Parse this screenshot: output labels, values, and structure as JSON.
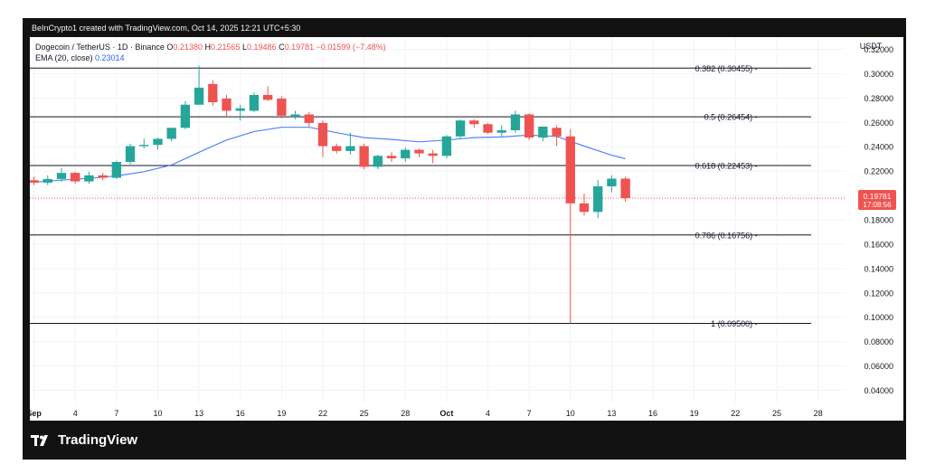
{
  "header": {
    "attribution": "BeInCrypto1 created with TradingView.com, Oct 14, 2025 12:21 UTC+5:30"
  },
  "legend": {
    "symbol": "Dogecoin / TetherUS · 1D · Binance",
    "o_label": "O",
    "o_value": "0.21380",
    "h_label": "H",
    "h_value": "0.21565",
    "l_label": "L",
    "l_value": "0.19486",
    "c_label": "C",
    "c_value": "0.19781",
    "change": "−0.01599 (−7.48%)",
    "ema_label": "EMA (20, close)",
    "ema_value": "0.23014"
  },
  "axis": {
    "currency": "USDT",
    "price_label": "0.19781",
    "countdown": "17:08:56"
  },
  "footer": {
    "brand": "TradingView"
  },
  "colors": {
    "up": "#26a69a",
    "down": "#ef5350",
    "ema": "#2962ff",
    "level_line": "#131722",
    "text": "#131722"
  },
  "chart_data": {
    "type": "candlestick",
    "title": "Dogecoin / TetherUS · 1D · Binance",
    "ylim": [
      0.03,
      0.33
    ],
    "y_ticks": [
      "0.32000",
      "0.30000",
      "0.28000",
      "0.26000",
      "0.24000",
      "0.22000",
      "0.20000",
      "0.18000",
      "0.16000",
      "0.14000",
      "0.12000",
      "0.10000",
      "0.08000",
      "0.06000",
      "0.04000"
    ],
    "x_ticks": [
      {
        "day": 1,
        "label": "Sep"
      },
      {
        "day": 4,
        "label": "4"
      },
      {
        "day": 7,
        "label": "7"
      },
      {
        "day": 10,
        "label": "10"
      },
      {
        "day": 13,
        "label": "13"
      },
      {
        "day": 16,
        "label": "16"
      },
      {
        "day": 19,
        "label": "19"
      },
      {
        "day": 22,
        "label": "22"
      },
      {
        "day": 25,
        "label": "25"
      },
      {
        "day": 28,
        "label": "28"
      },
      {
        "day": 31,
        "label": "Oct"
      },
      {
        "day": 34,
        "label": "4"
      },
      {
        "day": 37,
        "label": "7"
      },
      {
        "day": 40,
        "label": "10"
      },
      {
        "day": 43,
        "label": "13"
      },
      {
        "day": 46,
        "label": "16"
      },
      {
        "day": 49,
        "label": "19"
      },
      {
        "day": 52,
        "label": "22"
      },
      {
        "day": 55,
        "label": "25"
      },
      {
        "day": 58,
        "label": "28"
      }
    ],
    "x_range": [
      0.7,
      60
    ],
    "candles": [
      {
        "day": 1,
        "o": 0.2125,
        "h": 0.2155,
        "l": 0.2085,
        "c": 0.2105
      },
      {
        "day": 2,
        "o": 0.2105,
        "h": 0.2165,
        "l": 0.2085,
        "c": 0.2135
      },
      {
        "day": 3,
        "o": 0.2135,
        "h": 0.2225,
        "l": 0.2115,
        "c": 0.2185
      },
      {
        "day": 4,
        "o": 0.2185,
        "h": 0.2195,
        "l": 0.2095,
        "c": 0.2115
      },
      {
        "day": 5,
        "o": 0.2115,
        "h": 0.2195,
        "l": 0.2095,
        "c": 0.2165
      },
      {
        "day": 6,
        "o": 0.2165,
        "h": 0.2185,
        "l": 0.2125,
        "c": 0.2145
      },
      {
        "day": 7,
        "o": 0.2145,
        "h": 0.2285,
        "l": 0.2135,
        "c": 0.2275
      },
      {
        "day": 8,
        "o": 0.2275,
        "h": 0.2425,
        "l": 0.2255,
        "c": 0.2405
      },
      {
        "day": 9,
        "o": 0.2405,
        "h": 0.2465,
        "l": 0.2385,
        "c": 0.2415
      },
      {
        "day": 10,
        "o": 0.2415,
        "h": 0.2475,
        "l": 0.2375,
        "c": 0.2465
      },
      {
        "day": 11,
        "o": 0.2465,
        "h": 0.2555,
        "l": 0.2445,
        "c": 0.2555
      },
      {
        "day": 12,
        "o": 0.2555,
        "h": 0.2775,
        "l": 0.2545,
        "c": 0.2745
      },
      {
        "day": 13,
        "o": 0.2745,
        "h": 0.3065,
        "l": 0.2745,
        "c": 0.2885
      },
      {
        "day": 14,
        "o": 0.2915,
        "h": 0.2945,
        "l": 0.2735,
        "c": 0.2765
      },
      {
        "day": 15,
        "o": 0.2795,
        "h": 0.2825,
        "l": 0.2645,
        "c": 0.2695
      },
      {
        "day": 16,
        "o": 0.2695,
        "h": 0.2745,
        "l": 0.2615,
        "c": 0.2715
      },
      {
        "day": 17,
        "o": 0.2695,
        "h": 0.2845,
        "l": 0.2685,
        "c": 0.2825
      },
      {
        "day": 18,
        "o": 0.2825,
        "h": 0.2895,
        "l": 0.2775,
        "c": 0.2785
      },
      {
        "day": 19,
        "o": 0.2795,
        "h": 0.2815,
        "l": 0.2635,
        "c": 0.2655
      },
      {
        "day": 20,
        "o": 0.2645,
        "h": 0.2695,
        "l": 0.2625,
        "c": 0.2665
      },
      {
        "day": 21,
        "o": 0.2665,
        "h": 0.2685,
        "l": 0.2565,
        "c": 0.2595
      },
      {
        "day": 22,
        "o": 0.2595,
        "h": 0.2615,
        "l": 0.2315,
        "c": 0.2405
      },
      {
        "day": 23,
        "o": 0.2405,
        "h": 0.2425,
        "l": 0.2345,
        "c": 0.2365
      },
      {
        "day": 24,
        "o": 0.2365,
        "h": 0.2515,
        "l": 0.2335,
        "c": 0.2405
      },
      {
        "day": 25,
        "o": 0.2405,
        "h": 0.2425,
        "l": 0.2215,
        "c": 0.2235
      },
      {
        "day": 26,
        "o": 0.2235,
        "h": 0.2335,
        "l": 0.2215,
        "c": 0.2325
      },
      {
        "day": 27,
        "o": 0.2325,
        "h": 0.2355,
        "l": 0.2275,
        "c": 0.2305
      },
      {
        "day": 28,
        "o": 0.2305,
        "h": 0.2395,
        "l": 0.2275,
        "c": 0.2375
      },
      {
        "day": 29,
        "o": 0.2375,
        "h": 0.2385,
        "l": 0.2315,
        "c": 0.2345
      },
      {
        "day": 30,
        "o": 0.2345,
        "h": 0.2375,
        "l": 0.2265,
        "c": 0.2325
      },
      {
        "day": 31,
        "o": 0.2325,
        "h": 0.2495,
        "l": 0.2305,
        "c": 0.2485
      },
      {
        "day": 32,
        "o": 0.2485,
        "h": 0.2625,
        "l": 0.2465,
        "c": 0.2615
      },
      {
        "day": 33,
        "o": 0.2615,
        "h": 0.2625,
        "l": 0.2555,
        "c": 0.2585
      },
      {
        "day": 34,
        "o": 0.2585,
        "h": 0.2595,
        "l": 0.2505,
        "c": 0.2515
      },
      {
        "day": 35,
        "o": 0.2515,
        "h": 0.2575,
        "l": 0.2485,
        "c": 0.2535
      },
      {
        "day": 36,
        "o": 0.2535,
        "h": 0.2695,
        "l": 0.2515,
        "c": 0.2665
      },
      {
        "day": 37,
        "o": 0.2665,
        "h": 0.2675,
        "l": 0.2455,
        "c": 0.2475
      },
      {
        "day": 38,
        "o": 0.2475,
        "h": 0.2565,
        "l": 0.2445,
        "c": 0.2565
      },
      {
        "day": 39,
        "o": 0.2555,
        "h": 0.2575,
        "l": 0.2405,
        "c": 0.2485
      },
      {
        "day": 40,
        "o": 0.2485,
        "h": 0.2545,
        "l": 0.095,
        "c": 0.1935
      },
      {
        "day": 41,
        "o": 0.1935,
        "h": 0.2015,
        "l": 0.1835,
        "c": 0.1865
      },
      {
        "day": 42,
        "o": 0.1865,
        "h": 0.2125,
        "l": 0.1815,
        "c": 0.2075
      },
      {
        "day": 43,
        "o": 0.2075,
        "h": 0.2165,
        "l": 0.2025,
        "c": 0.2138
      },
      {
        "day": 44,
        "o": 0.2138,
        "h": 0.2156,
        "l": 0.1949,
        "c": 0.1978
      }
    ],
    "ema": {
      "name": "EMA (20, close)",
      "days": [
        1,
        3,
        5,
        7,
        9,
        11,
        13,
        15,
        17,
        19,
        21,
        23,
        25,
        27,
        29,
        31,
        33,
        35,
        37,
        39,
        41,
        43,
        44
      ],
      "values": [
        0.211,
        0.2125,
        0.214,
        0.216,
        0.2195,
        0.225,
        0.2355,
        0.2455,
        0.2525,
        0.256,
        0.256,
        0.2515,
        0.2475,
        0.246,
        0.244,
        0.2455,
        0.2475,
        0.248,
        0.2495,
        0.2485,
        0.2405,
        0.233,
        0.2301
      ]
    },
    "fib_levels": [
      {
        "value": 0.30455,
        "label": "0.382 (0.30455)"
      },
      {
        "value": 0.26454,
        "label": "0.5 (0.26454)"
      },
      {
        "value": 0.22453,
        "label": "0.618 (0.22453)"
      },
      {
        "value": 0.16756,
        "label": "0.786 (0.16756)"
      },
      {
        "value": 0.095,
        "label": "1 (0.09500)"
      }
    ],
    "last_price": 0.19781
  }
}
